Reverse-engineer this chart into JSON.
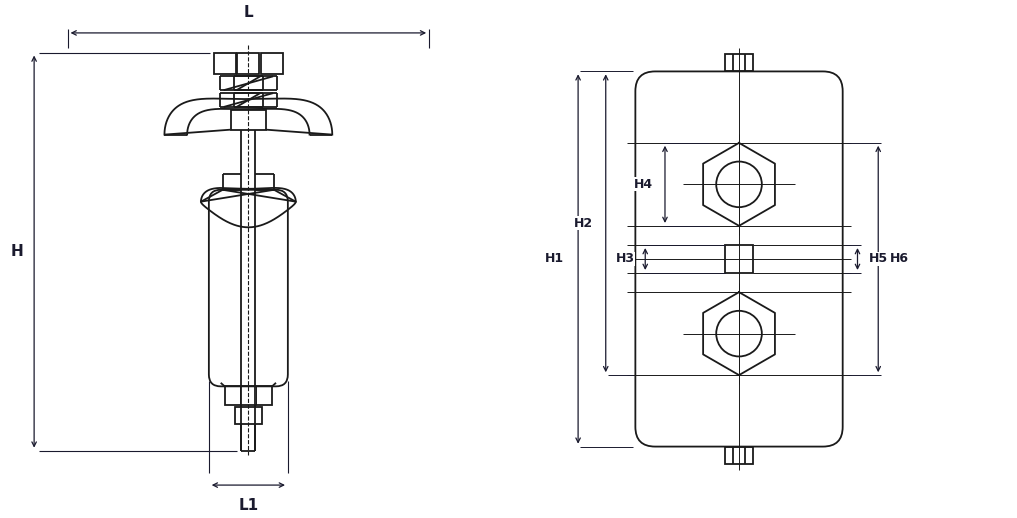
{
  "bg_color": "#ffffff",
  "line_color": "#1a1a1a",
  "dim_color": "#1a1a2e",
  "lw": 1.3,
  "tlw": 0.7,
  "fig_width": 10.17,
  "fig_height": 5.18,
  "labels": {
    "L": "L",
    "L1": "L1",
    "H": "H",
    "H1": "H1",
    "H2": "H2",
    "H3": "H3",
    "H4": "H4",
    "H5": "H5",
    "H6": "H6"
  }
}
